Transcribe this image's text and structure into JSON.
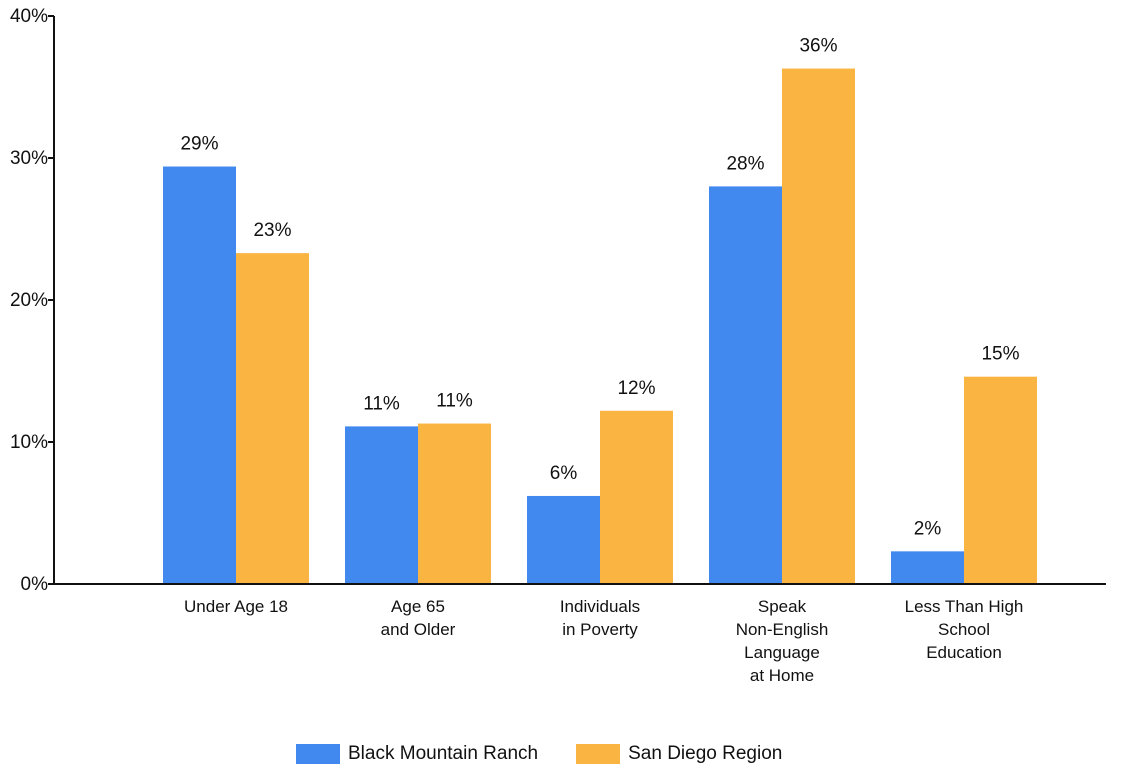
{
  "chart_data": {
    "type": "bar",
    "categories": [
      [
        "Under Age 18"
      ],
      [
        "Age 65",
        "and Older"
      ],
      [
        "Individuals",
        "in Poverty"
      ],
      [
        "Speak",
        "Non-English",
        "Language",
        "at Home"
      ],
      [
        "Less Than High",
        "School",
        "Education"
      ]
    ],
    "series": [
      {
        "name": "Black Mountain Ranch",
        "color": "#4189EE",
        "values": [
          29.4,
          11.1,
          6.2,
          28.0,
          2.3
        ],
        "labels": [
          "29%",
          "11%",
          "6%",
          "28%",
          "2%"
        ]
      },
      {
        "name": "San Diego Region",
        "color": "#FAB442",
        "values": [
          23.3,
          11.3,
          12.2,
          36.3,
          14.6
        ],
        "labels": [
          "23%",
          "11%",
          "12%",
          "36%",
          "15%"
        ]
      }
    ],
    "ylim": [
      0,
      40
    ],
    "yticks": [
      0,
      10,
      20,
      30,
      40
    ],
    "ytick_labels": [
      "0%",
      "10%",
      "20%",
      "30%",
      "40%"
    ],
    "grid": false,
    "legend_position": "bottom"
  }
}
